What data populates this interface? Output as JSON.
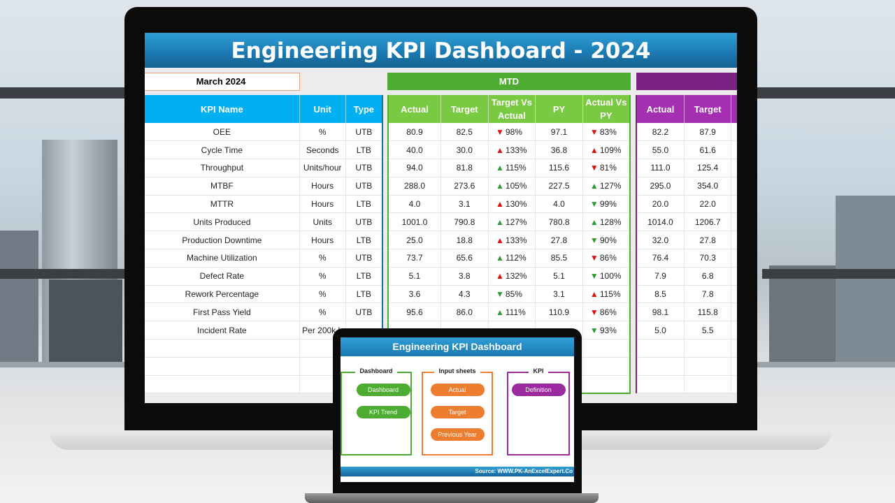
{
  "dashboard": {
    "title": "Engineering KPI Dashboard - 2024",
    "month": "March 2024",
    "mtd_label": "MTD",
    "ytd_label": "",
    "colors": {
      "title_blue": "#1a78b0",
      "kpi_header": "#00b0f0",
      "mtd_green": "#4eac32",
      "mtd_header": "#7ac943",
      "ytd_purple": "#7b2283",
      "ytd_header": "#a42fb0",
      "up_green": "#2e9c32",
      "down_red": "#e01010"
    },
    "headers": {
      "kpi": "KPI Name",
      "unit": "Unit",
      "type": "Type",
      "actual": "Actual",
      "target": "Target",
      "tva": "Target Vs Actual",
      "py": "PY",
      "avp": "Actual Vs PY",
      "ytd_actual": "Actual",
      "ytd_target": "Target"
    },
    "rows": [
      {
        "name": "OEE",
        "unit": "%",
        "type": "UTB",
        "actual": "80.9",
        "target": "82.5",
        "tva_icon": "down-red",
        "tva": "98%",
        "py": "97.1",
        "avp_icon": "down-red",
        "avp": "83%",
        "ytd_actual": "82.2",
        "ytd_target": "87.9"
      },
      {
        "name": "Cycle Time",
        "unit": "Seconds",
        "type": "LTB",
        "actual": "40.0",
        "target": "30.0",
        "tva_icon": "up-red",
        "tva": "133%",
        "py": "36.8",
        "avp_icon": "up-red",
        "avp": "109%",
        "ytd_actual": "55.0",
        "ytd_target": "61.6"
      },
      {
        "name": "Throughput",
        "unit": "Units/hour",
        "type": "UTB",
        "actual": "94.0",
        "target": "81.8",
        "tva_icon": "up-green",
        "tva": "115%",
        "py": "115.6",
        "avp_icon": "down-red",
        "avp": "81%",
        "ytd_actual": "111.0",
        "ytd_target": "125.4"
      },
      {
        "name": "MTBF",
        "unit": "Hours",
        "type": "UTB",
        "actual": "288.0",
        "target": "273.6",
        "tva_icon": "up-green",
        "tva": "105%",
        "py": "227.5",
        "avp_icon": "up-green",
        "avp": "127%",
        "ytd_actual": "295.0",
        "ytd_target": "354.0"
      },
      {
        "name": "MTTR",
        "unit": "Hours",
        "type": "LTB",
        "actual": "4.0",
        "target": "3.1",
        "tva_icon": "up-red",
        "tva": "130%",
        "py": "4.0",
        "avp_icon": "down-green",
        "avp": "99%",
        "ytd_actual": "20.0",
        "ytd_target": "22.0"
      },
      {
        "name": "Units Produced",
        "unit": "Units",
        "type": "UTB",
        "actual": "1001.0",
        "target": "790.8",
        "tva_icon": "up-green",
        "tva": "127%",
        "py": "780.8",
        "avp_icon": "up-green",
        "avp": "128%",
        "ytd_actual": "1014.0",
        "ytd_target": "1206.7"
      },
      {
        "name": "Production Downtime",
        "unit": "Hours",
        "type": "LTB",
        "actual": "25.0",
        "target": "18.8",
        "tva_icon": "up-red",
        "tva": "133%",
        "py": "27.8",
        "avp_icon": "down-green",
        "avp": "90%",
        "ytd_actual": "32.0",
        "ytd_target": "27.8"
      },
      {
        "name": "Machine Utilization",
        "unit": "%",
        "type": "UTB",
        "actual": "73.7",
        "target": "65.6",
        "tva_icon": "up-green",
        "tva": "112%",
        "py": "85.5",
        "avp_icon": "down-red",
        "avp": "86%",
        "ytd_actual": "76.4",
        "ytd_target": "70.3"
      },
      {
        "name": "Defect Rate",
        "unit": "%",
        "type": "LTB",
        "actual": "5.1",
        "target": "3.8",
        "tva_icon": "up-red",
        "tva": "132%",
        "py": "5.1",
        "avp_icon": "down-green",
        "avp": "100%",
        "ytd_actual": "7.9",
        "ytd_target": "6.8"
      },
      {
        "name": "Rework Percentage",
        "unit": "%",
        "type": "LTB",
        "actual": "3.6",
        "target": "4.3",
        "tva_icon": "down-green",
        "tva": "85%",
        "py": "3.1",
        "avp_icon": "up-red",
        "avp": "115%",
        "ytd_actual": "8.5",
        "ytd_target": "7.8"
      },
      {
        "name": "First Pass Yield",
        "unit": "%",
        "type": "UTB",
        "actual": "95.6",
        "target": "86.0",
        "tva_icon": "up-green",
        "tva": "111%",
        "py": "110.9",
        "avp_icon": "down-red",
        "avp": "86%",
        "ytd_actual": "98.1",
        "ytd_target": "115.8"
      },
      {
        "name": "Incident Rate",
        "unit": "Per 200k h",
        "type": "",
        "actual": "",
        "target": "",
        "tva_icon": "",
        "tva": "",
        "py": "",
        "avp_icon": "down-green",
        "avp": "93%",
        "ytd_actual": "5.0",
        "ytd_target": "5.5"
      }
    ]
  },
  "menu": {
    "title": "Engineering KPI Dashboard",
    "groups": [
      {
        "label": "Dashboard",
        "color": "#4eac32",
        "buttons": [
          "Dashboard",
          "KPI Trend"
        ]
      },
      {
        "label": "Input sheets",
        "color": "#ed7d31",
        "buttons": [
          "Actual",
          "Target",
          "Previous Year"
        ]
      },
      {
        "label": "KPI",
        "color": "#9b2a9f",
        "buttons": [
          "Definition"
        ]
      }
    ],
    "source": "Source: WWW.PK-AnExcelExpert.Co"
  }
}
